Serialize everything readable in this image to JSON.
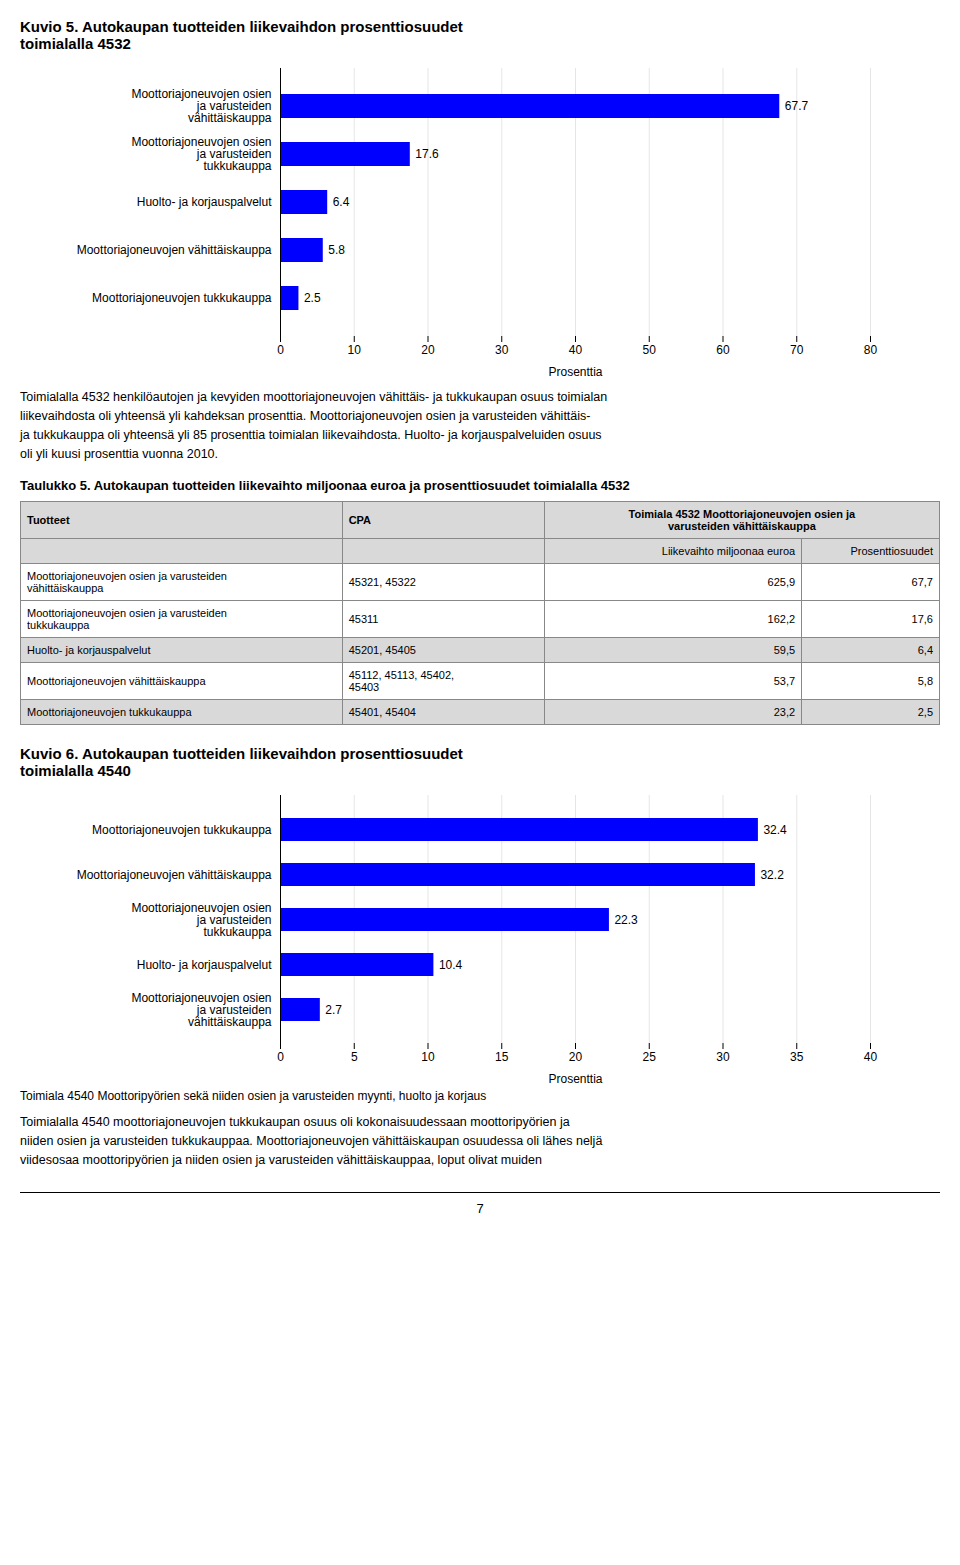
{
  "chart_data": [
    {
      "type": "bar",
      "orientation": "horizontal",
      "title": "Kuvio 5. Autokaupan tuotteiden liikevaihdon prosenttiosuudet\ntoimialalla 4532",
      "categories": [
        "Moottoriajoneuvojen tukkukauppa",
        "Moottoriajoneuvojen vähittäiskauppa",
        "Huolto- ja korjauspalvelut",
        "Moottoriajoneuvojen osien\nja varusteiden\ntukkukauppa",
        "Moottoriajoneuvojen osien\nja varusteiden\nvähittäiskauppa"
      ],
      "values": [
        2.5,
        5.8,
        6.4,
        17.6,
        67.7
      ],
      "color": "#0000ff",
      "xlabel": "Prosenttia",
      "xlim": [
        0,
        80
      ],
      "xticks": [
        0,
        10,
        20,
        30,
        40,
        50,
        60,
        70,
        80
      ],
      "grid": true,
      "data_labels": true
    },
    {
      "type": "bar",
      "orientation": "horizontal",
      "title": "Kuvio 6. Autokaupan tuotteiden liikevaihdon prosenttiosuudet\ntoimialalla 4540",
      "categories": [
        "Moottoriajoneuvojen osien\nja varusteiden\nvähittäiskauppa",
        "Huolto- ja korjauspalvelut",
        "Moottoriajoneuvojen osien\nja varusteiden\ntukkukauppa",
        "Moottoriajoneuvojen vähittäiskauppa",
        "Moottoriajoneuvojen tukkukauppa"
      ],
      "values": [
        2.7,
        10.4,
        22.3,
        32.2,
        32.4
      ],
      "color": "#0000ff",
      "xlabel": "Prosenttia",
      "xlim": [
        0,
        40
      ],
      "xticks": [
        0,
        5,
        10,
        15,
        20,
        25,
        30,
        35,
        40
      ],
      "grid": true,
      "data_labels": true,
      "caption": "Toimiala 4540 Moottoripyörien sekä niiden osien ja varusteiden myynti, huolto ja korjaus"
    }
  ],
  "paragraph1": [
    "Toimialalla 4532 henkilöautojen ja kevyiden moottoriajoneuvojen vähittäis- ja tukkukaupan osuus toimialan",
    "liikevaihdosta oli yhteensä yli kahdeksan prosenttia. Moottoriajoneuvojen osien ja varusteiden vähittäis-",
    "ja tukkukauppa oli yhteensä yli 85 prosenttia toimialan liikevaihdosta. Huolto- ja korjauspalveluiden osuus",
    "oli yli kuusi prosenttia vuonna 2010."
  ],
  "table": {
    "title": "Taulukko 5. Autokaupan tuotteiden liikevaihto miljoonaa euroa ja prosenttiosuudet toimialalla 4532",
    "header1": [
      "Tuotteet",
      "CPA",
      "Toimiala 4532 Moottoriajoneuvojen osien ja\nvarusteiden vähittäiskauppa"
    ],
    "header2": [
      "Liikevaihto miljoonaa euroa",
      "Prosenttiosuudet"
    ],
    "rows": [
      [
        "Moottoriajoneuvojen osien ja varusteiden\nvähittäiskauppa",
        "45321, 45322",
        "625,9",
        "67,7"
      ],
      [
        "Moottoriajoneuvojen osien ja varusteiden\ntukkukauppa",
        "45311",
        "162,2",
        "17,6"
      ],
      [
        "Huolto- ja korjauspalvelut",
        "45201, 45405",
        "59,5",
        "6,4"
      ],
      [
        "Moottoriajoneuvojen vähittäiskauppa",
        "45112, 45113, 45402,\n45403",
        "53,7",
        "5,8"
      ],
      [
        "Moottoriajoneuvojen tukkukauppa",
        "45401, 45404",
        "23,2",
        "2,5"
      ]
    ]
  },
  "paragraph2": [
    "Toimialalla 4540 moottoriajoneuvojen tukkukaupan osuus oli kokonaisuudessaan moottoripyörien ja",
    "niiden osien ja varusteiden tukkukauppaa. Moottoriajoneuvojen vähittäiskaupan osuudessa oli lähes neljä",
    "viidesosaa moottoripyörien ja niiden osien ja varusteiden vähittäiskauppaa, loput olivat muiden"
  ],
  "page_number": "7"
}
